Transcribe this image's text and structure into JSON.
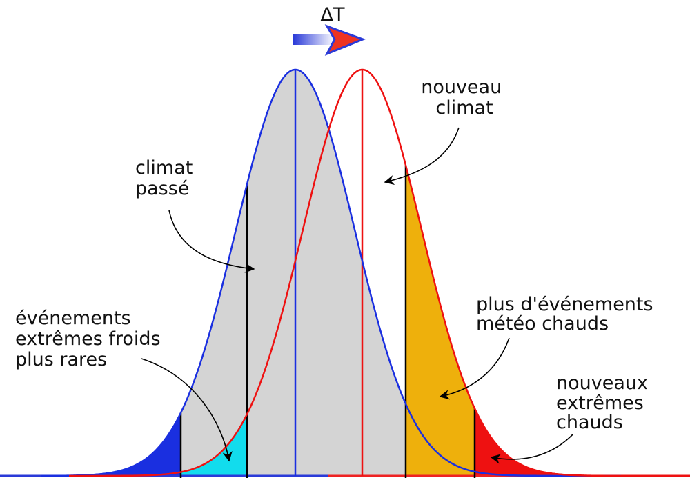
{
  "shift_label": "ΔT",
  "labels": {
    "new_climate": [
      "nouveau",
      "climat"
    ],
    "past_climate": [
      "climat",
      "passé"
    ],
    "cold_extremes": [
      "événements",
      "extrêmes froids",
      "plus rares"
    ],
    "hot_weather": [
      "plus d'événements",
      "météo chauds"
    ],
    "hot_extremes": [
      "nouveaux",
      "extrêmes",
      "chauds"
    ]
  }
}
